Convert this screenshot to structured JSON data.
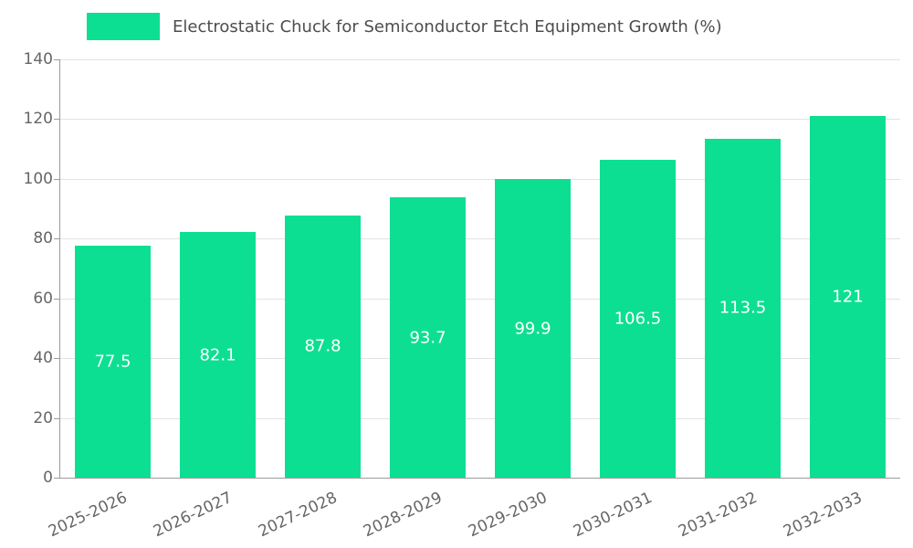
{
  "chart_data": {
    "type": "bar",
    "title": "Electrostatic Chuck for Semiconductor Etch Equipment Growth (%)",
    "categories": [
      "2025-2026",
      "2026-2027",
      "2027-2028",
      "2028-2029",
      "2029-2030",
      "2030-2031",
      "2031-2032",
      "2032-2033"
    ],
    "values": [
      77.5,
      82.1,
      87.8,
      93.7,
      99.9,
      106.5,
      113.5,
      121
    ],
    "value_labels": [
      "77.5",
      "82.1",
      "87.8",
      "93.7",
      "99.9",
      "106.5",
      "113.5",
      "121"
    ],
    "xlabel": "",
    "ylabel": "",
    "ylim": [
      0,
      140
    ],
    "ytick_step": 20,
    "yticks": [
      "0",
      "20",
      "40",
      "60",
      "80",
      "100",
      "120",
      "140"
    ],
    "grid": "horizontal",
    "legend_position": "top",
    "bar_color": "#0ddf92",
    "value_label_color": "#ffffff",
    "axis_text_color": "#666666",
    "title_color": "#4d4d4d",
    "gridline_color": "#e3e3e3",
    "background_color": "#ffffff"
  }
}
